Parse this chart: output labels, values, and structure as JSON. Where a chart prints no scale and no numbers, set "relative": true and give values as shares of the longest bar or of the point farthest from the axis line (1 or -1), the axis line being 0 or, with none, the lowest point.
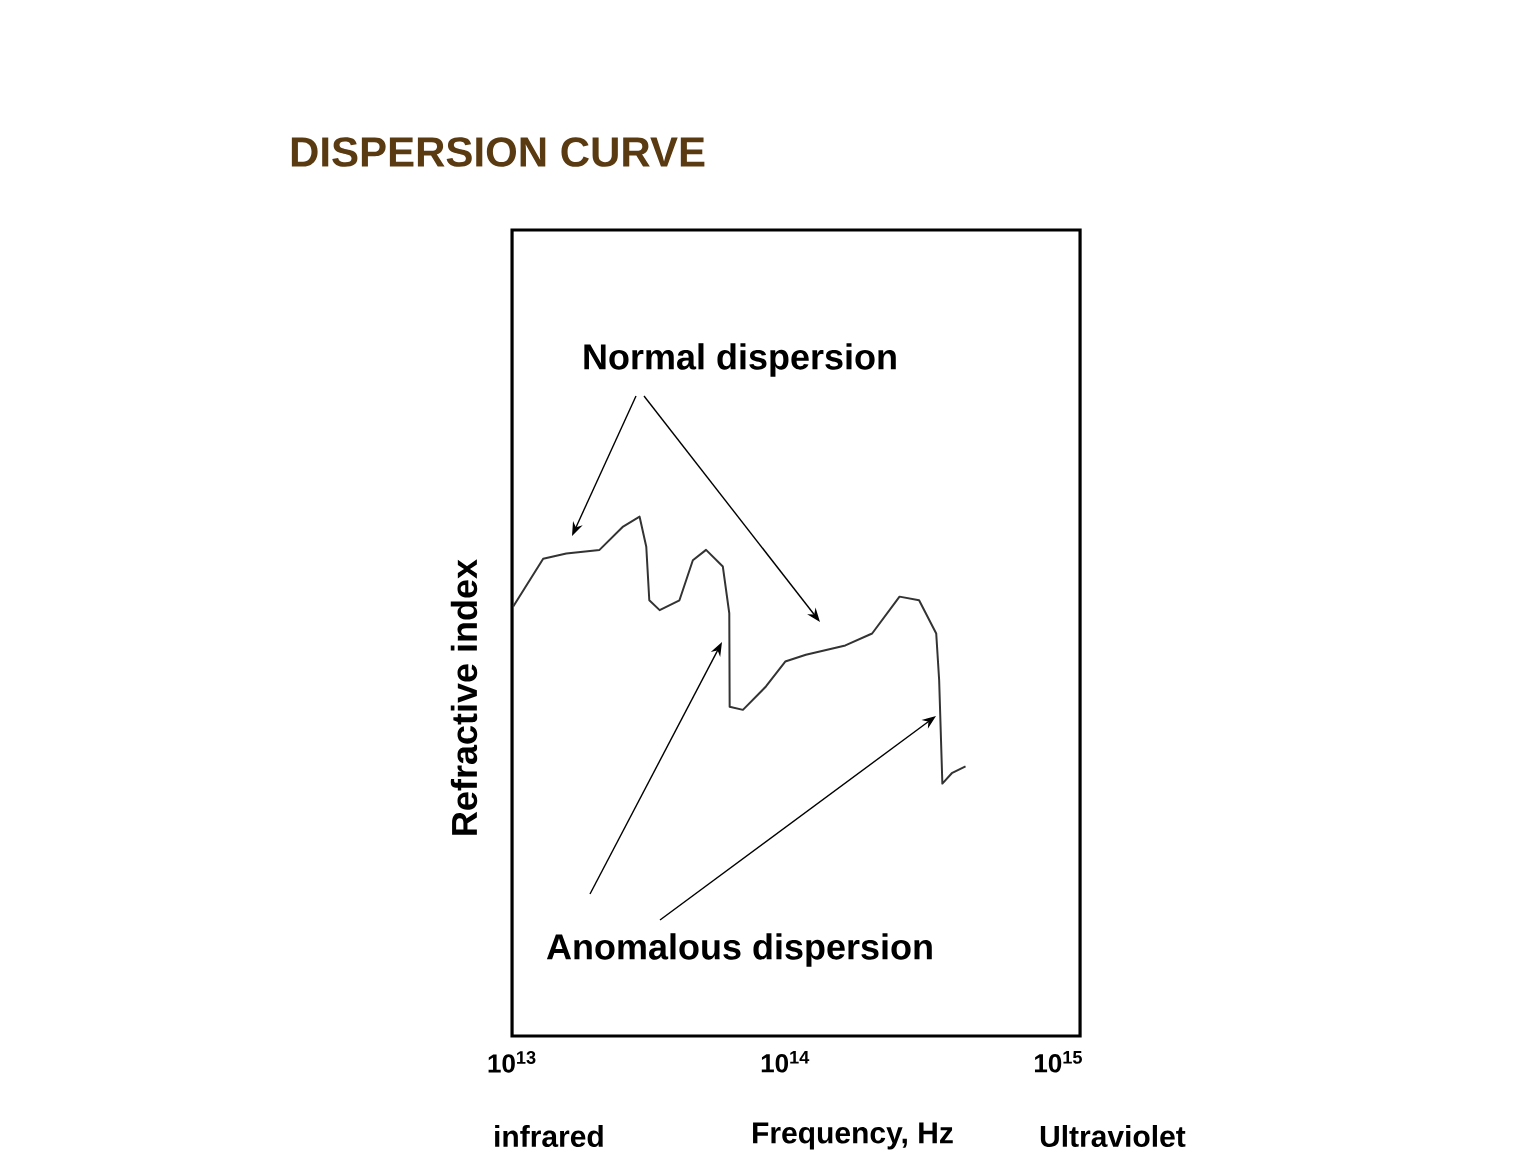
{
  "chart_data": {
    "type": "line",
    "title": "DISPERSION CURVE",
    "xlabel": "Frequency, Hz",
    "ylabel": "Refractive index",
    "log": "x",
    "relative": true,
    "marker": "none",
    "line_style": "solid",
    "color": "#333333",
    "xlim": [
      10000000000000.0,
      1200000000000000.0
    ],
    "xticks": [
      {
        "value": 10000000000000.0,
        "label": "10$^{13}$"
      },
      {
        "value": 100000000000000.0,
        "label": "10$^{14}$"
      },
      {
        "value": 1000000000000000.0,
        "label": "10$^{15}$"
      }
    ],
    "x": [
      10100000000000.0,
      13000000000000.0,
      15800000000000.0,
      20900000000000.0,
      25500000000000.0,
      29300000000000.0,
      31000000000000.0,
      31800000000000.0,
      34700000000000.0,
      41000000000000.0,
      45900000000000.0,
      51300000000000.0,
      59100000000000.0,
      62400000000000.0,
      62600000000000.0,
      70000000000000.0,
      85000000000000.0,
      100000000000000.0,
      119000000000000.0,
      166000000000000.0,
      208000000000000.0,
      262000000000000.0,
      309000000000000.0,
      357000000000000.0,
      366000000000000.0,
      376000000000000.0,
      407000000000000.0,
      457000000000000.0
    ],
    "values": [
      0.827,
      0.919,
      0.929,
      0.936,
      0.981,
      1.0,
      0.942,
      0.839,
      0.82,
      0.839,
      0.916,
      0.936,
      0.904,
      0.814,
      0.634,
      0.628,
      0.673,
      0.721,
      0.734,
      0.752,
      0.775,
      0.846,
      0.839,
      0.775,
      0.685,
      0.486,
      0.506,
      0.519
    ],
    "annotations": [
      "Normal dispersion",
      "Anomalous dispersion",
      "infrared",
      "Ultraviolet"
    ]
  }
}
